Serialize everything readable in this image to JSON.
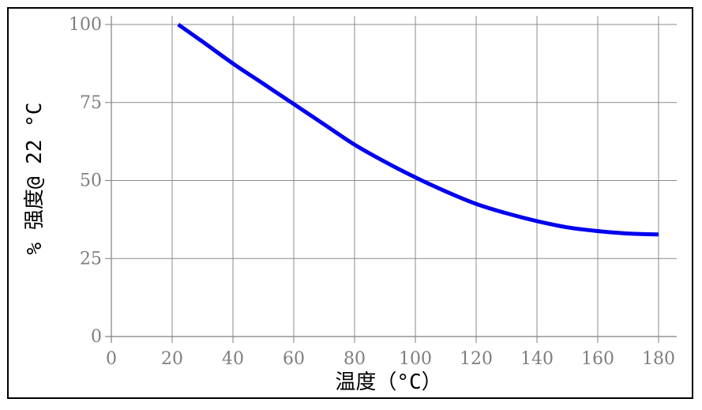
{
  "chart_data": {
    "type": "line",
    "title": "",
    "xlabel": "温度（°C）",
    "ylabel": "% 强度@ 22 °C",
    "xlim": [
      0,
      180
    ],
    "ylim": [
      0,
      100
    ],
    "xticks": [
      0,
      20,
      40,
      60,
      80,
      100,
      120,
      140,
      160,
      180
    ],
    "yticks": [
      0,
      25,
      50,
      75,
      100
    ],
    "grid": true,
    "series": [
      {
        "color": "#0000ee",
        "x": [
          22,
          30,
          40,
          50,
          60,
          70,
          80,
          90,
          100,
          110,
          120,
          130,
          140,
          150,
          160,
          170,
          180
        ],
        "y": [
          100,
          94.5,
          87.5,
          81,
          74.5,
          68,
          61.5,
          56,
          51,
          46.5,
          42.5,
          39.5,
          37,
          35,
          33.8,
          33,
          32.7
        ]
      }
    ]
  }
}
